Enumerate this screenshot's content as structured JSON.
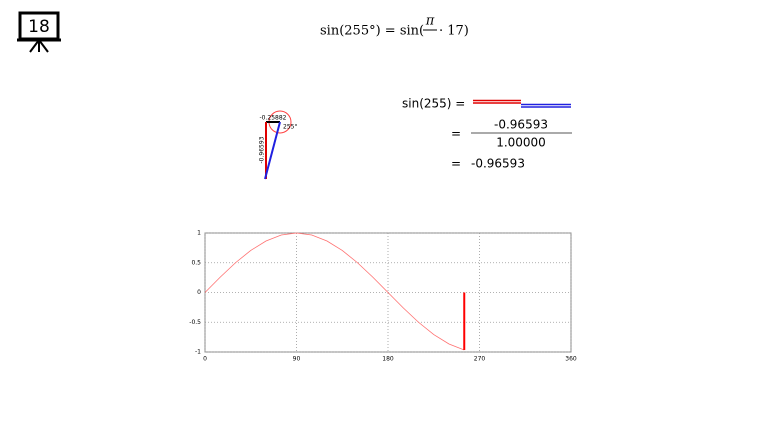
{
  "slide_number": "18",
  "formula": {
    "lhs": "sin(255°) = sin(",
    "numerator": "π",
    "rhs": "· 17)"
  },
  "triangle": {
    "cos_label": "-0.25882",
    "angle_label": "255°",
    "sin_label": "-0.96593"
  },
  "ratio": {
    "label": "sin(255) =",
    "eq1": "=",
    "numerator": "-0.96593",
    "denominator": "1.00000",
    "eq2": "=",
    "result": "-0.96593"
  },
  "chart_data": {
    "type": "line",
    "x": [
      0,
      15,
      30,
      45,
      60,
      75,
      90,
      105,
      120,
      135,
      150,
      165,
      180,
      195,
      210,
      225,
      240,
      255
    ],
    "series": [
      {
        "color": "#ff7070",
        "values": [
          0,
          0.2588,
          0.5,
          0.7071,
          0.866,
          0.9659,
          1,
          0.9659,
          0.866,
          0.7071,
          0.5,
          0.2588,
          0,
          -0.2588,
          -0.5,
          -0.7071,
          -0.866,
          -0.9659
        ]
      }
    ],
    "marker": {
      "x": 255,
      "value": -0.96593,
      "color": "#ff0000"
    },
    "xlim": [
      0,
      360
    ],
    "xticks": [
      0,
      90,
      180,
      270,
      360
    ],
    "ylim": [
      -1,
      1
    ],
    "yticks": [
      1,
      0.5,
      0,
      -0.5,
      -1
    ],
    "grid": true
  }
}
